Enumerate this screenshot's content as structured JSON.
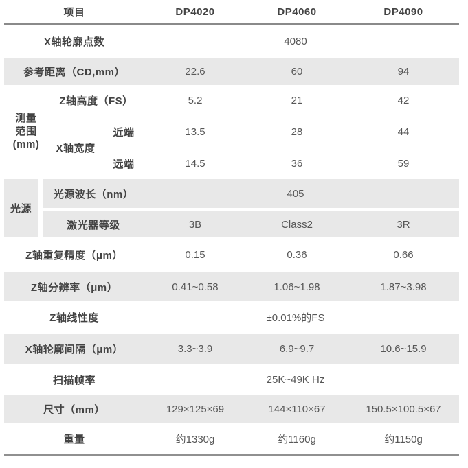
{
  "colors": {
    "row_shade": "#e8e8e8",
    "header_line": "#8a8a8a",
    "bottom_line": "#909090",
    "label_text": "#434343",
    "value_text": "#575757"
  },
  "header": {
    "item": "项目",
    "models": [
      "DP4020",
      "DP4060",
      "DP4090"
    ]
  },
  "rows": {
    "profile_points": {
      "label": "X轴轮廓点数",
      "value": "4080"
    },
    "reference_distance": {
      "label": "参考距离（CD,mm）",
      "v1": "22.6",
      "v2": "60",
      "v3": "94"
    },
    "measure_range": {
      "group_label": "测量\n范围\n(mm)",
      "z_height": {
        "label": "Z轴高度（FS）",
        "v1": "5.2",
        "v2": "21",
        "v3": "42"
      },
      "x_width_label": "X轴宽度",
      "near": {
        "label": "近端",
        "v1": "13.5",
        "v2": "28",
        "v3": "44"
      },
      "far": {
        "label": "远端",
        "v1": "14.5",
        "v2": "36",
        "v3": "59"
      }
    },
    "light_source": {
      "group_label": "光源",
      "wavelength": {
        "label": "光源波长（nm）",
        "value": "405"
      },
      "laser_class": {
        "label": "激光器等级",
        "v1": "3B",
        "v2": "Class2",
        "v3": "3R"
      }
    },
    "z_repeatability": {
      "label": "Z轴重复精度（μm）",
      "v1": "0.15",
      "v2": "0.36",
      "v3": "0.66"
    },
    "z_resolution": {
      "label": "Z轴分辨率（μm）",
      "v1": "0.41~0.58",
      "v2": "1.06~1.98",
      "v3": "1.87~3.98"
    },
    "z_linearity": {
      "label": "Z轴线性度",
      "value": "±0.01%的FS"
    },
    "x_profile_interval": {
      "label": "X轴轮廓间隔（μm）",
      "v1": "3.3~3.9",
      "v2": "6.9~9.7",
      "v3": "10.6~15.9"
    },
    "scan_rate": {
      "label": "扫描帧率",
      "value": "25K~49K Hz"
    },
    "dimensions": {
      "label": "尺寸（mm）",
      "v1": "129×125×69",
      "v2": "144×110×67",
      "v3": "150.5×100.5×67"
    },
    "weight": {
      "label": "重量",
      "v1": "约1330g",
      "v2": "约1160g",
      "v3": "约1150g"
    }
  }
}
